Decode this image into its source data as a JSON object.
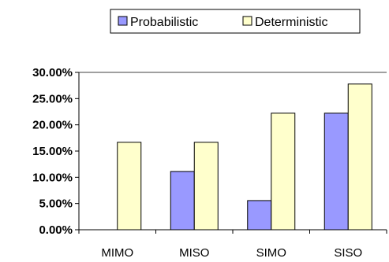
{
  "chart_data": {
    "type": "bar",
    "categories": [
      "MIMO",
      "MISO",
      "SIMO",
      "SISO"
    ],
    "series": [
      {
        "name": "Probabilistic",
        "values": [
          0,
          11.11,
          5.56,
          22.22
        ],
        "color": "#9999ff"
      },
      {
        "name": "Deterministic",
        "values": [
          16.67,
          16.67,
          22.22,
          27.78
        ],
        "color": "#ffffcc"
      }
    ],
    "ylim": [
      0,
      30
    ],
    "yticks": [
      0,
      5,
      10,
      15,
      20,
      25,
      30
    ],
    "ytick_labels": [
      "0.00%",
      "5.00%",
      "10.00%",
      "15.00%",
      "20.00%",
      "25.00%",
      "30.00%"
    ],
    "legend_position": "top-center",
    "grid": false
  }
}
